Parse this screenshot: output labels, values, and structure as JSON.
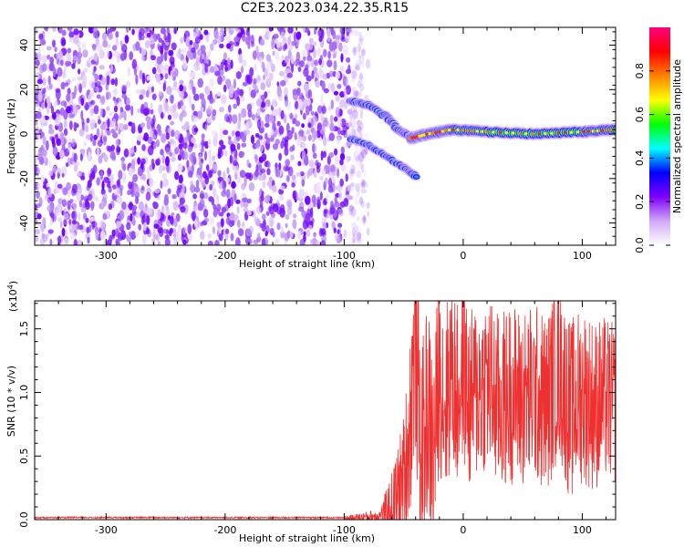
{
  "figure": {
    "title": "C2E3.2023.034.22.35.R15"
  },
  "chart_data": [
    {
      "type": "heatmap",
      "title": "",
      "xlabel": "Height of straight line (km)",
      "ylabel": "Frequency (Hz)",
      "xlim": [
        -360,
        128
      ],
      "ylim": [
        -50,
        48
      ],
      "xticks": [
        -300,
        -200,
        -100,
        0,
        100
      ],
      "yticks": [
        -40,
        -20,
        0,
        20,
        40
      ],
      "colorbar": {
        "label": "Normalized spectral amplitude",
        "range": [
          0,
          1
        ],
        "ticks": [
          0.0,
          0.2,
          0.4,
          0.6,
          0.8
        ],
        "colormap": [
          "#ffffff",
          "#cfa9f7",
          "#7f00ff",
          "#0000ff",
          "#00ffff",
          "#00ff00",
          "#ffff00",
          "#ff8000",
          "#ff0000",
          "#ff0080"
        ]
      },
      "regions": [
        {
          "description": "broadband noise",
          "x_range": [
            -360,
            -95
          ],
          "freq_range": [
            -50,
            48
          ],
          "amplitude": 0.05
        },
        {
          "description": "upper converging trace",
          "points": [
            [
              -95,
              15
            ],
            [
              -80,
              13
            ],
            [
              -65,
              8
            ],
            [
              -55,
              2
            ],
            [
              -45,
              -1
            ]
          ],
          "amplitude": 0.3
        },
        {
          "description": "lower converging trace",
          "points": [
            [
              -95,
              -2
            ],
            [
              -80,
              -5
            ],
            [
              -65,
              -10
            ],
            [
              -50,
              -15
            ],
            [
              -40,
              -19
            ]
          ],
          "amplitude": 0.2
        },
        {
          "description": "steady line",
          "points": [
            [
              -45,
              -2
            ],
            [
              -30,
              0
            ],
            [
              -10,
              2
            ],
            [
              20,
              1
            ],
            [
              60,
              0
            ],
            [
              100,
              1
            ],
            [
              128,
              2
            ]
          ],
          "amplitude": 0.9
        }
      ]
    },
    {
      "type": "line",
      "title": "",
      "xlabel": "Height of straight line (km)",
      "ylabel": "SNR (10 * v/v)",
      "y_scale_note": "(x10",
      "y_scale_exp": "4",
      "y_scale_close": ")",
      "xlim": [
        -360,
        128
      ],
      "ylim": [
        0,
        1.72
      ],
      "xticks": [
        -300,
        -200,
        -100,
        0,
        100
      ],
      "yticks": [
        0.0,
        0.5,
        1.0,
        1.5
      ],
      "ytick_labels": [
        "0.0",
        "0.5",
        "1.0",
        "1.5"
      ],
      "series": [
        {
          "color": "#ee3030",
          "points": [
            [
              -360,
              0.01
            ],
            [
              -200,
              0.01
            ],
            [
              -100,
              0.01
            ],
            [
              -70,
              0.03
            ],
            [
              -60,
              0.08
            ],
            [
              -55,
              0.18
            ],
            [
              -50,
              0.3
            ],
            [
              -45,
              0.7
            ],
            [
              -42,
              1.2
            ],
            [
              -40,
              1.4
            ],
            [
              -35,
              0.45
            ],
            [
              -30,
              0.9
            ],
            [
              -25,
              0.5
            ],
            [
              -20,
              1.2
            ],
            [
              -15,
              0.9
            ],
            [
              -10,
              1.2
            ],
            [
              -5,
              0.95
            ],
            [
              0,
              1.2
            ],
            [
              5,
              0.9
            ],
            [
              10,
              1.0
            ],
            [
              20,
              1.1
            ],
            [
              30,
              0.9
            ],
            [
              40,
              1.0
            ],
            [
              50,
              0.95
            ],
            [
              60,
              1.0
            ],
            [
              70,
              0.9
            ],
            [
              80,
              1.2
            ],
            [
              90,
              0.85
            ],
            [
              100,
              1.0
            ],
            [
              110,
              0.9
            ],
            [
              120,
              0.95
            ],
            [
              128,
              0.9
            ]
          ],
          "noise_band": [
            [
              -360,
              0.0
            ],
            [
              -100,
              0.02
            ],
            [
              -70,
              0.06
            ],
            [
              -50,
              0.6
            ],
            [
              -40,
              1.0
            ],
            [
              -20,
              0.9
            ],
            [
              0,
              0.8
            ],
            [
              50,
              0.8
            ],
            [
              100,
              0.8
            ],
            [
              128,
              0.7
            ]
          ]
        }
      ]
    }
  ]
}
